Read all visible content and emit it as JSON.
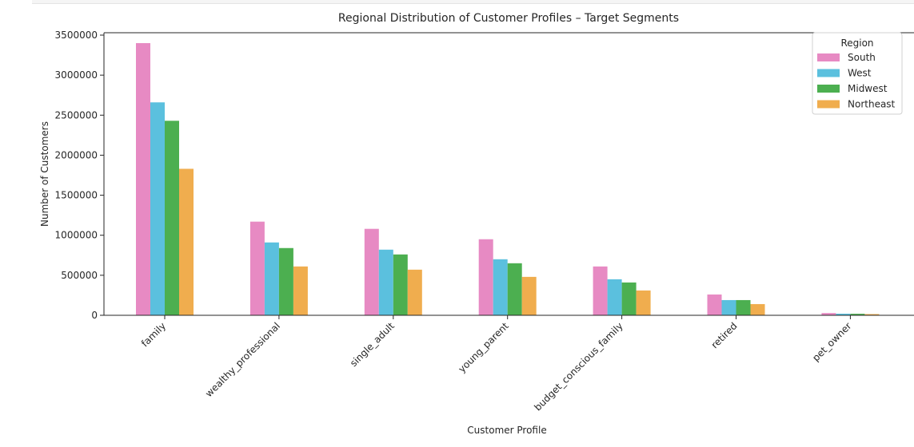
{
  "chart_data": {
    "type": "bar",
    "title": "Regional Distribution of Customer Profiles – Target Segments",
    "xlabel": "Customer Profile",
    "ylabel": "Number of Customers",
    "ylim": [
      0,
      3500000
    ],
    "yticks": [
      0,
      500000,
      1000000,
      1500000,
      2000000,
      2500000,
      3000000,
      3500000
    ],
    "ytick_labels": [
      "0",
      "500000",
      "1000000",
      "1500000",
      "2000000",
      "2500000",
      "3000000",
      "3500000"
    ],
    "grid": false,
    "categories": [
      "family",
      "wealthy_professional",
      "single_adult",
      "young_parent",
      "budget_conscious_family",
      "retired",
      "pet_owner"
    ],
    "legend": {
      "title": "Region",
      "placement": "upper right"
    },
    "series": [
      {
        "name": "South",
        "color": "#e78ac3",
        "values": [
          3400000,
          1170000,
          1080000,
          950000,
          610000,
          260000,
          28000
        ]
      },
      {
        "name": "West",
        "color": "#5bc0de",
        "values": [
          2660000,
          910000,
          820000,
          700000,
          450000,
          190000,
          20000
        ]
      },
      {
        "name": "Midwest",
        "color": "#4caf50",
        "values": [
          2430000,
          840000,
          760000,
          650000,
          410000,
          190000,
          19000
        ]
      },
      {
        "name": "Northeast",
        "color": "#f0ad4e",
        "values": [
          1830000,
          610000,
          570000,
          480000,
          310000,
          140000,
          15000
        ]
      }
    ]
  }
}
